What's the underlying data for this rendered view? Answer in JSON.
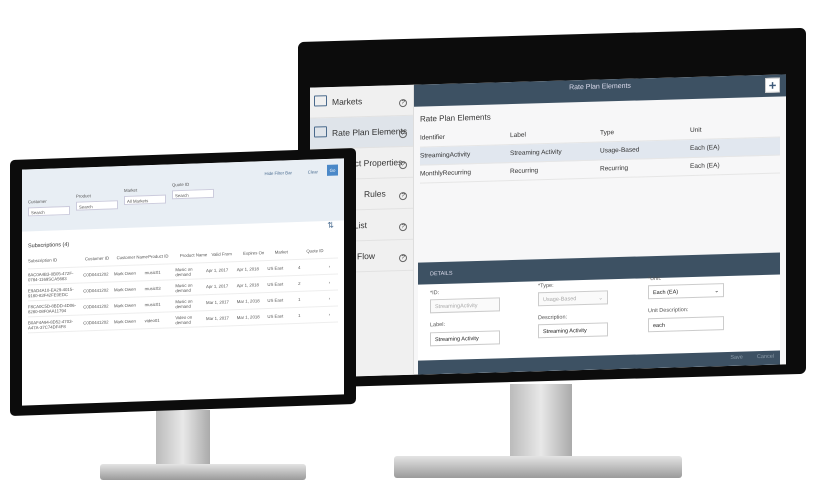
{
  "right_app": {
    "header_title": "Rate Plan Elements",
    "add_icon": "plus-icon",
    "sidebar": [
      {
        "label": "Markets",
        "icon": "market-icon"
      },
      {
        "label": "Rate Plan Elements",
        "icon": "grid-icon",
        "active": true
      },
      {
        "label": "Product Properties",
        "icon": "properties-icon"
      },
      {
        "label": "Rules",
        "icon": "rules-icon"
      },
      {
        "label": "Price List",
        "icon": "list-icon"
      },
      {
        "label": "Billing Flow",
        "icon": "flow-icon"
      }
    ],
    "table": {
      "title": "Rate Plan Elements",
      "columns": [
        "Identifier",
        "Label",
        "Type",
        "Unit"
      ],
      "rows": [
        [
          "StreamingActivity",
          "Streaming Activity",
          "Usage-Based",
          "Each (EA)"
        ],
        [
          "MonthlyRecurring",
          "Recurring",
          "Recurring",
          "Each (EA)"
        ]
      ]
    },
    "details": {
      "tab": "DETAILS",
      "id_label": "*ID:",
      "id_value": "StreamingActivity",
      "type_label": "*Type:",
      "type_value": "Usage-Based",
      "unit_label": "*Unit:",
      "unit_value": "Each (EA)",
      "label_label": "Label:",
      "label_value": "Streaming Activity",
      "description_label": "Description:",
      "description_value": "Streaming Activity",
      "unit_description_label": "Unit Description:",
      "unit_description_value": "each",
      "save": "Save",
      "cancel": "Cancel"
    }
  },
  "left_app": {
    "hide_filter": "Hide Filter Bar",
    "clear": "Clear",
    "go": "Go",
    "filters": [
      {
        "label": "Customer",
        "value": "Search"
      },
      {
        "label": "Product",
        "value": "Search"
      },
      {
        "label": "Market",
        "value": "All Markets"
      },
      {
        "label": "Quote ID",
        "value": "Search"
      }
    ],
    "table_title": "Subscriptions (4)",
    "columns": [
      "Subscription ID",
      "Customer ID",
      "Customer Name",
      "Product ID",
      "Product Name",
      "Valid From",
      "Expires On",
      "Market",
      "Quote ID"
    ],
    "rows": [
      [
        "8AC0A4B3-0B05-472F-0784-1169SCA5683",
        "C0D0441202",
        "Mark Owen",
        "music01",
        "Music on demand",
        "Apr 1, 2017",
        "Apr 1, 2018",
        "US East",
        "4"
      ],
      [
        "E9AD4A10-EA29-4015-9180-83F42FE0EDC",
        "C0D0441202",
        "Mark Owen",
        "music03",
        "Music on demand",
        "Apr 1, 2017",
        "Apr 1, 2018",
        "US East",
        "2"
      ],
      [
        "F8CA0C5D-8BDD-4D06-8280-08F0AA11794",
        "C0D0441202",
        "Mark Owen",
        "music01",
        "Music on demand",
        "Mar 1, 2017",
        "Mar 1, 2018",
        "US East",
        "1"
      ],
      [
        "B0AF4A94-8D52-4703-A47A-37C74DF4F8",
        "C0D0441202",
        "Mark Owen",
        "video01",
        "Video on demand",
        "Mar 1, 2017",
        "Mar 1, 2018",
        "US East",
        "1"
      ]
    ]
  }
}
